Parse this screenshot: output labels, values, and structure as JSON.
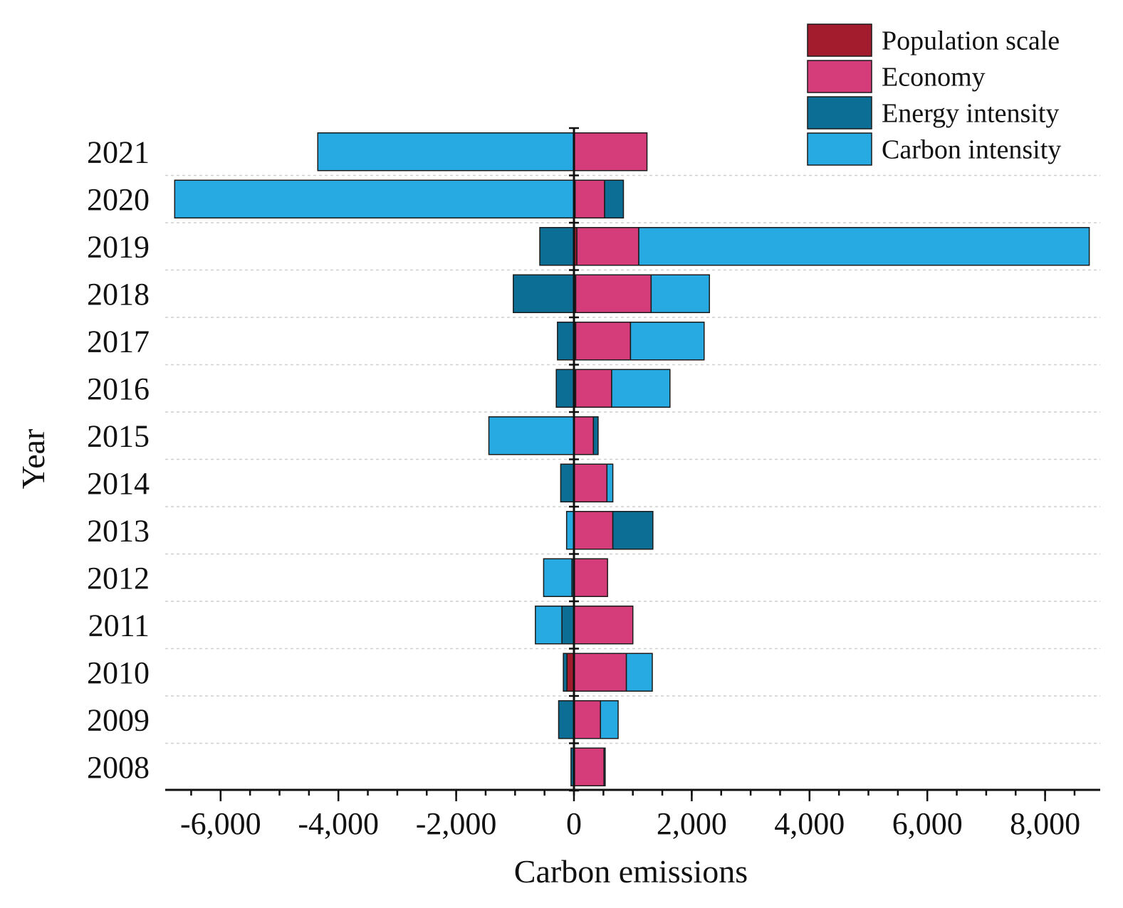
{
  "chart_data": {
    "type": "bar",
    "orientation": "horizontal",
    "stacked": true,
    "title": "",
    "xlabel": "Carbon emissions",
    "ylabel": "Year",
    "xlim": [
      -7000,
      8800
    ],
    "xticks": [
      -6000,
      -4000,
      -2000,
      0,
      2000,
      4000,
      6000,
      8000
    ],
    "xtick_labels": [
      "-6,000",
      "-4,000",
      "-2,000",
      "0",
      "2,000",
      "4,000",
      "6,000",
      "8,000"
    ],
    "categories": [
      "2021",
      "2020",
      "2019",
      "2018",
      "2017",
      "2016",
      "2015",
      "2014",
      "2013",
      "2012",
      "2011",
      "2010",
      "2009",
      "2008"
    ],
    "legend_position": "top-right",
    "series": [
      {
        "name": "Population scale",
        "color": "#a31c2e",
        "values": [
          10,
          20,
          50,
          30,
          30,
          30,
          -5,
          -5,
          -5,
          -5,
          -5,
          -120,
          10,
          10
        ]
      },
      {
        "name": "Economy",
        "color": "#d43d7a",
        "values": [
          1230,
          500,
          1050,
          1280,
          930,
          610,
          330,
          560,
          660,
          570,
          1000,
          890,
          440,
          500
        ]
      },
      {
        "name": "Energy intensity",
        "color": "#0c6e94",
        "values": [
          -10,
          320,
          -580,
          -1030,
          -280,
          -300,
          80,
          -220,
          680,
          -30,
          -200,
          -60,
          -260,
          -50
        ]
      },
      {
        "name": "Carbon intensity",
        "color": "#27a9e1",
        "values": [
          -4340,
          -6780,
          7650,
          990,
          1250,
          990,
          -1440,
          100,
          -120,
          -480,
          -450,
          440,
          300,
          20
        ]
      }
    ]
  }
}
